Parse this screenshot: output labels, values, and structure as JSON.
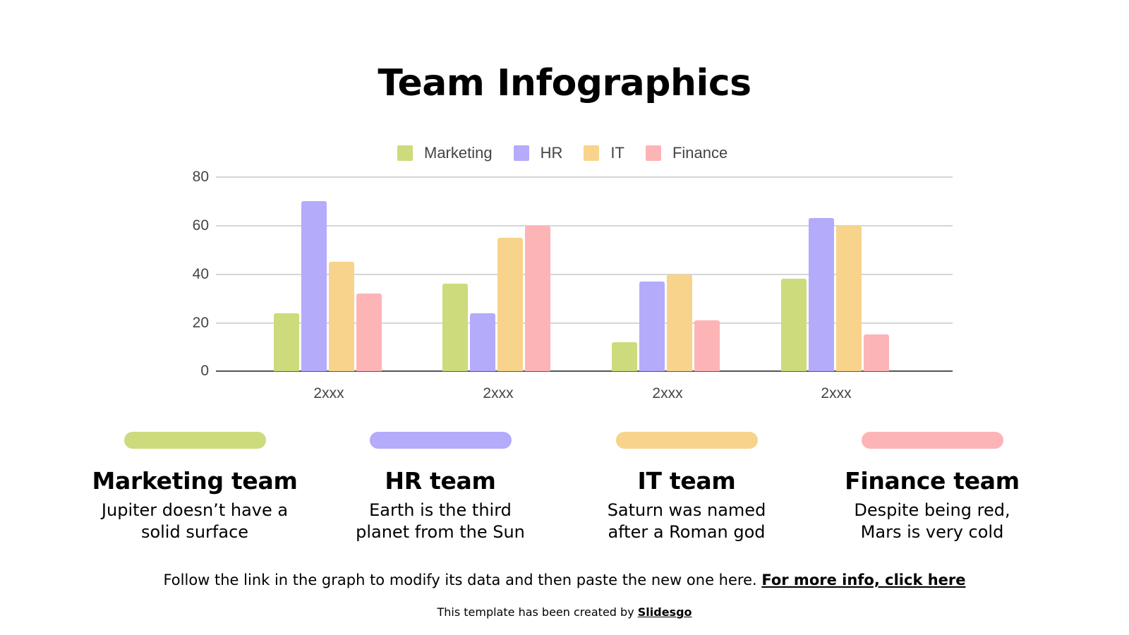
{
  "slide": {
    "title": "Team Infographics"
  },
  "colors": {
    "marketing": "#cddb7c",
    "hr": "#b4abfb",
    "it": "#f8d38c",
    "finance": "#fdb4b6"
  },
  "chart_data": {
    "type": "bar",
    "title": "",
    "xlabel": "",
    "ylabel": "",
    "categories": [
      "2xxx",
      "2xxx",
      "2xxx",
      "2xxx"
    ],
    "series": [
      {
        "name": "Marketing",
        "color": "#cddb7c",
        "values": [
          24,
          36,
          12,
          38
        ]
      },
      {
        "name": "HR",
        "color": "#b4abfb",
        "values": [
          70,
          24,
          37,
          63
        ]
      },
      {
        "name": "IT",
        "color": "#f8d38c",
        "values": [
          45,
          55,
          40,
          60
        ]
      },
      {
        "name": "Finance",
        "color": "#fdb4b6",
        "values": [
          32,
          60,
          21,
          15
        ]
      }
    ],
    "ylim": [
      0,
      80
    ],
    "yticks": [
      "0",
      "20",
      "40",
      "60",
      "80"
    ],
    "grid": true,
    "legend_position": "top"
  },
  "legend": [
    {
      "label": "Marketing"
    },
    {
      "label": "HR"
    },
    {
      "label": "IT"
    },
    {
      "label": "Finance"
    }
  ],
  "teams": [
    {
      "title": "Marketing team",
      "description": "Jupiter doesn’t have a\nsolid surface"
    },
    {
      "title": "HR team",
      "description": "Earth is the third\nplanet from the Sun"
    },
    {
      "title": "IT team",
      "description": "Saturn was named\nafter a Roman god"
    },
    {
      "title": "Finance team",
      "description": "Despite being red,\nMars is very cold"
    }
  ],
  "footer": {
    "info_text": "Follow the link in the graph to modify its data and then paste the new one here. ",
    "info_link": "For more info, click here",
    "credit_text": "This template has been created by ",
    "credit_link": "Slidesgo"
  }
}
